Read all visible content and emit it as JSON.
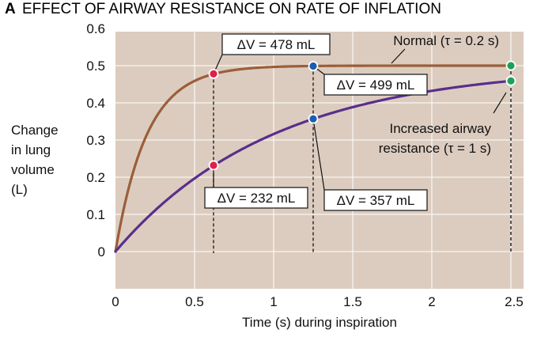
{
  "figure": {
    "panel_letter": "A",
    "title": "EFFECT OF AIRWAY RESISTANCE ON RATE OF INFLATION"
  },
  "colors": {
    "plot_background": "#dcccbf",
    "normal_curve": "#9b5e3a",
    "resistance_curve": "#5a2e8c",
    "marker_red": "#e01f4a",
    "marker_blue": "#1a5fb0",
    "marker_green": "#1ea05a",
    "grid": "#ffffff"
  },
  "chart_data": {
    "type": "line",
    "title": "EFFECT OF AIRWAY RESISTANCE ON RATE OF INFLATION",
    "xlabel": "Time (s) during inspiration",
    "ylabel": [
      "Change",
      "in lung",
      "volume",
      "(L)"
    ],
    "xlim": [
      0,
      2.5
    ],
    "ylim": [
      -0.1,
      0.6
    ],
    "x_ticks": [
      {
        "value": 0,
        "label": "0"
      },
      {
        "value": 0.5,
        "label": "0.5"
      },
      {
        "value": 1,
        "label": "1"
      },
      {
        "value": 1.5,
        "label": "1.5"
      },
      {
        "value": 2,
        "label": "2"
      },
      {
        "value": 2.5,
        "label": "2.5"
      }
    ],
    "y_ticks": [
      {
        "value": 0,
        "label": "0"
      },
      {
        "value": 0.1,
        "label": "0.1"
      },
      {
        "value": 0.2,
        "label": "0.2"
      },
      {
        "value": 0.3,
        "label": "0.3"
      },
      {
        "value": 0.4,
        "label": "0.4"
      },
      {
        "value": 0.5,
        "label": "0.5"
      },
      {
        "value": 0.6,
        "label": "0.6"
      }
    ],
    "grid": true,
    "series": [
      {
        "name": "Normal (τ = 0.2 s)",
        "label_lines": [
          "Normal (τ = 0.2 s)"
        ],
        "color_key": "normal_curve",
        "vmax": 0.5,
        "tau": 0.2
      },
      {
        "name": "Increased airway resistance (τ = 1 s)",
        "label_lines": [
          "Increased airway",
          "resistance (τ = 1 s)"
        ],
        "color_key": "resistance_curve",
        "vmax": 0.5,
        "tau": 1
      }
    ],
    "markers": [
      {
        "series": 0,
        "x": 0.62,
        "y": 0.478,
        "color_key": "marker_red",
        "label": "ΔV = 478 mL",
        "dashed_drop": true
      },
      {
        "series": 0,
        "x": 1.25,
        "y": 0.499,
        "color_key": "marker_blue",
        "label": "ΔV = 499 mL",
        "dashed_drop": true
      },
      {
        "series": 0,
        "x": 2.5,
        "y": 0.5,
        "color_key": "marker_green",
        "label": "",
        "dashed_drop": true
      },
      {
        "series": 1,
        "x": 0.62,
        "y": 0.232,
        "color_key": "marker_red",
        "label": "ΔV = 232 mL",
        "dashed_drop": false
      },
      {
        "series": 1,
        "x": 1.25,
        "y": 0.357,
        "color_key": "marker_blue",
        "label": "ΔV = 357 mL",
        "dashed_drop": false
      },
      {
        "series": 1,
        "x": 2.5,
        "y": 0.459,
        "color_key": "marker_green",
        "label": "",
        "dashed_drop": false
      }
    ]
  }
}
